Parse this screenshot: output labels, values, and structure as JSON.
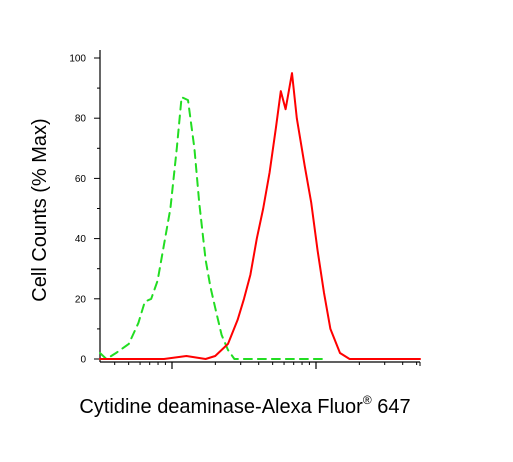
{
  "chart_data": {
    "type": "line",
    "title": "",
    "xlabel": "Cytidine deaminase-Alexa Fluor",
    "xlabel_superscript": "®",
    "xlabel_suffix": " 647",
    "ylabel": "Cell Counts (% Max)",
    "x_scale": "log",
    "x_tick_labels": [],
    "ylim": [
      0,
      100
    ],
    "yticks": [
      0,
      20,
      40,
      60,
      80,
      100
    ],
    "grid": false,
    "legend": "none",
    "series": [
      {
        "color": "#22dd22",
        "dash": "dashed",
        "points": [
          [
            0.0,
            2
          ],
          [
            0.02,
            0
          ],
          [
            0.05,
            2
          ],
          [
            0.09,
            5
          ],
          [
            0.12,
            12
          ],
          [
            0.14,
            19
          ],
          [
            0.16,
            20
          ],
          [
            0.18,
            26
          ],
          [
            0.2,
            38
          ],
          [
            0.22,
            50
          ],
          [
            0.24,
            70
          ],
          [
            0.255,
            87
          ],
          [
            0.275,
            86
          ],
          [
            0.295,
            70
          ],
          [
            0.31,
            52
          ],
          [
            0.33,
            33
          ],
          [
            0.345,
            24
          ],
          [
            0.36,
            17
          ],
          [
            0.38,
            8
          ],
          [
            0.4,
            3
          ],
          [
            0.42,
            0
          ],
          [
            0.45,
            0
          ],
          [
            0.5,
            0
          ],
          [
            0.6,
            0
          ],
          [
            0.7,
            0
          ]
        ]
      },
      {
        "color": "#ff0000",
        "dash": "solid",
        "points": [
          [
            0.0,
            0
          ],
          [
            0.2,
            0
          ],
          [
            0.27,
            1
          ],
          [
            0.33,
            0
          ],
          [
            0.36,
            1
          ],
          [
            0.4,
            5
          ],
          [
            0.43,
            13
          ],
          [
            0.45,
            20
          ],
          [
            0.47,
            28
          ],
          [
            0.49,
            40
          ],
          [
            0.51,
            50
          ],
          [
            0.53,
            62
          ],
          [
            0.55,
            77
          ],
          [
            0.565,
            89
          ],
          [
            0.58,
            83
          ],
          [
            0.6,
            95
          ],
          [
            0.615,
            80
          ],
          [
            0.64,
            64
          ],
          [
            0.66,
            52
          ],
          [
            0.68,
            36
          ],
          [
            0.7,
            22
          ],
          [
            0.72,
            10
          ],
          [
            0.75,
            2
          ],
          [
            0.78,
            0
          ],
          [
            1.0,
            0
          ]
        ]
      }
    ]
  },
  "colors": {
    "axis": "#000000",
    "background": "#ffffff",
    "control_series": "#22dd22",
    "sample_series": "#ff0000"
  }
}
